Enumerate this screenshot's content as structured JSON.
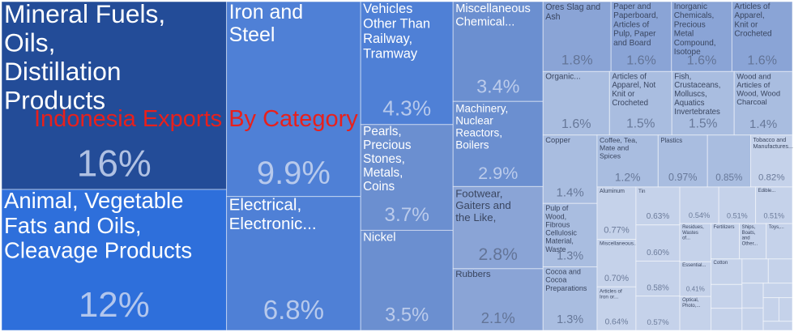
{
  "chart_data": {
    "type": "treemap",
    "title": "Indonesia Exports By Category",
    "categories": [
      "Mineral Fuels, Oils, Distillation Products",
      "Animal, Vegetable Fats and Oils, Cleavage Products",
      "Iron and Steel",
      "Electrical, Electronic...",
      "Vehicles Other Than Railway, Tramway",
      "Pearls, Precious Stones, Metals, Coins",
      "Nickel",
      "Miscellaneous Chemical...",
      "Machinery, Nuclear Reactors, Boilers",
      "Footwear, Gaiters and the Like,",
      "Rubbers",
      "Ores Slag and Ash",
      "Paper and Paperboard, Articles of Pulp, Paper and Board",
      "Inorganic Chemicals, Precious Metal Compound, Isotope",
      "Articles of Apparel, Knit or Crocheted",
      "Organic...",
      "Articles of Apparel, Not Knit or Crocheted",
      "Fish, Crustaceans, Molluscs, Aquatics Invertebrates",
      "Wood and Articles of Wood, Wood Charcoal",
      "Copper",
      "Pulp of Wood, Fibrous Cellulosic Material, Waste",
      "Cocoa and Cocoa Preparations",
      "Coffee, Tea, Mate and Spices",
      "Plastics",
      null,
      "Tobacco and Manufactures...",
      "Aluminum",
      "Miscellaneous...",
      "Articles of Iron or...",
      "Tin",
      null,
      null,
      null,
      null,
      null,
      "Edible...",
      "Residues, Wastes of...",
      "Essential...",
      "Optical, Photo,...",
      "Fertilizers",
      "Ships, Boats, and Other...",
      "Toys,...",
      "Cotton",
      null,
      null,
      null,
      null,
      null,
      null,
      null,
      null,
      null,
      null
    ],
    "values": [
      16,
      12,
      9.9,
      6.8,
      4.3,
      3.7,
      3.5,
      3.4,
      2.9,
      2.8,
      2.1,
      1.8,
      1.6,
      1.6,
      1.6,
      1.6,
      1.5,
      1.5,
      1.4,
      1.4,
      1.3,
      1.3,
      1.2,
      0.97,
      0.85,
      0.82,
      0.77,
      0.7,
      0.64,
      0.63,
      0.6,
      0.58,
      0.57,
      0.54,
      0.51,
      0.51,
      0.45,
      0.41,
      0.4,
      0.38,
      0.36,
      0.35,
      0.3,
      0.28,
      0.26,
      0.24,
      0.22,
      0.2,
      0.18,
      0.16,
      0.14,
      0.12,
      0.1
    ],
    "value_labels": [
      "16%",
      "12%",
      "9.9%",
      "6.8%",
      "4.3%",
      "3.7%",
      "3.5%",
      "3.4%",
      "2.9%",
      "2.8%",
      "2.1%",
      "1.8%",
      "1.6%",
      "1.6%",
      "1.6%",
      "1.6%",
      "1.5%",
      "1.5%",
      "1.4%",
      "1.4%",
      "1.3%",
      "1.3%",
      "1.2%",
      "0.97%",
      "0.85%",
      "0.82%",
      "0.77%",
      "0.70%",
      "0.64%",
      "0.63%",
      "0.60%",
      "0.58%",
      "0.57%",
      "0.54%",
      "0.51%",
      "0.51%",
      null,
      "0.41%",
      null,
      null,
      null,
      null,
      null,
      null,
      null,
      null,
      null,
      null,
      null,
      null,
      null,
      null,
      null
    ]
  }
}
